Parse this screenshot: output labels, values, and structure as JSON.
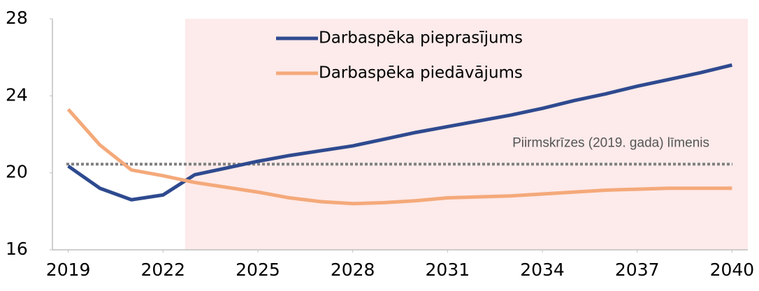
{
  "chart_data": {
    "type": "line",
    "x": [
      2019,
      2020,
      2021,
      2022,
      2023,
      2024,
      2025,
      2026,
      2027,
      2028,
      2029,
      2030,
      2031,
      2032,
      2033,
      2034,
      2035,
      2036,
      2037,
      2038,
      2039,
      2040
    ],
    "series": [
      {
        "name": "Darbaspēka pieprasījums",
        "color": "#2e4a8f",
        "values": [
          20.35,
          19.2,
          18.6,
          18.85,
          19.9,
          20.25,
          20.6,
          20.9,
          21.15,
          21.4,
          21.75,
          22.1,
          22.4,
          22.7,
          23.0,
          23.35,
          23.75,
          24.1,
          24.5,
          24.85,
          25.2,
          25.6
        ]
      },
      {
        "name": "Darbaspēka piedāvājums",
        "color": "#f4a97a",
        "values": [
          23.3,
          21.45,
          20.15,
          19.85,
          19.5,
          19.25,
          19.0,
          18.7,
          18.5,
          18.4,
          18.45,
          18.55,
          18.7,
          18.75,
          18.8,
          18.9,
          19.0,
          19.1,
          19.15,
          19.2,
          19.2,
          19.2
        ]
      }
    ],
    "reference_line": {
      "value": 20.45,
      "label": "Piirmskrīzes (2019. gada) līmenis",
      "color": "#808080"
    },
    "shade_from": 2022.7,
    "shade_color": "#fdeaea",
    "xlim": [
      2018.5,
      2040.5
    ],
    "xticks": [
      2019,
      2022,
      2025,
      2028,
      2031,
      2034,
      2037,
      2040
    ],
    "ylim": [
      16,
      28
    ],
    "yticks": [
      16,
      20,
      24,
      28
    ]
  }
}
